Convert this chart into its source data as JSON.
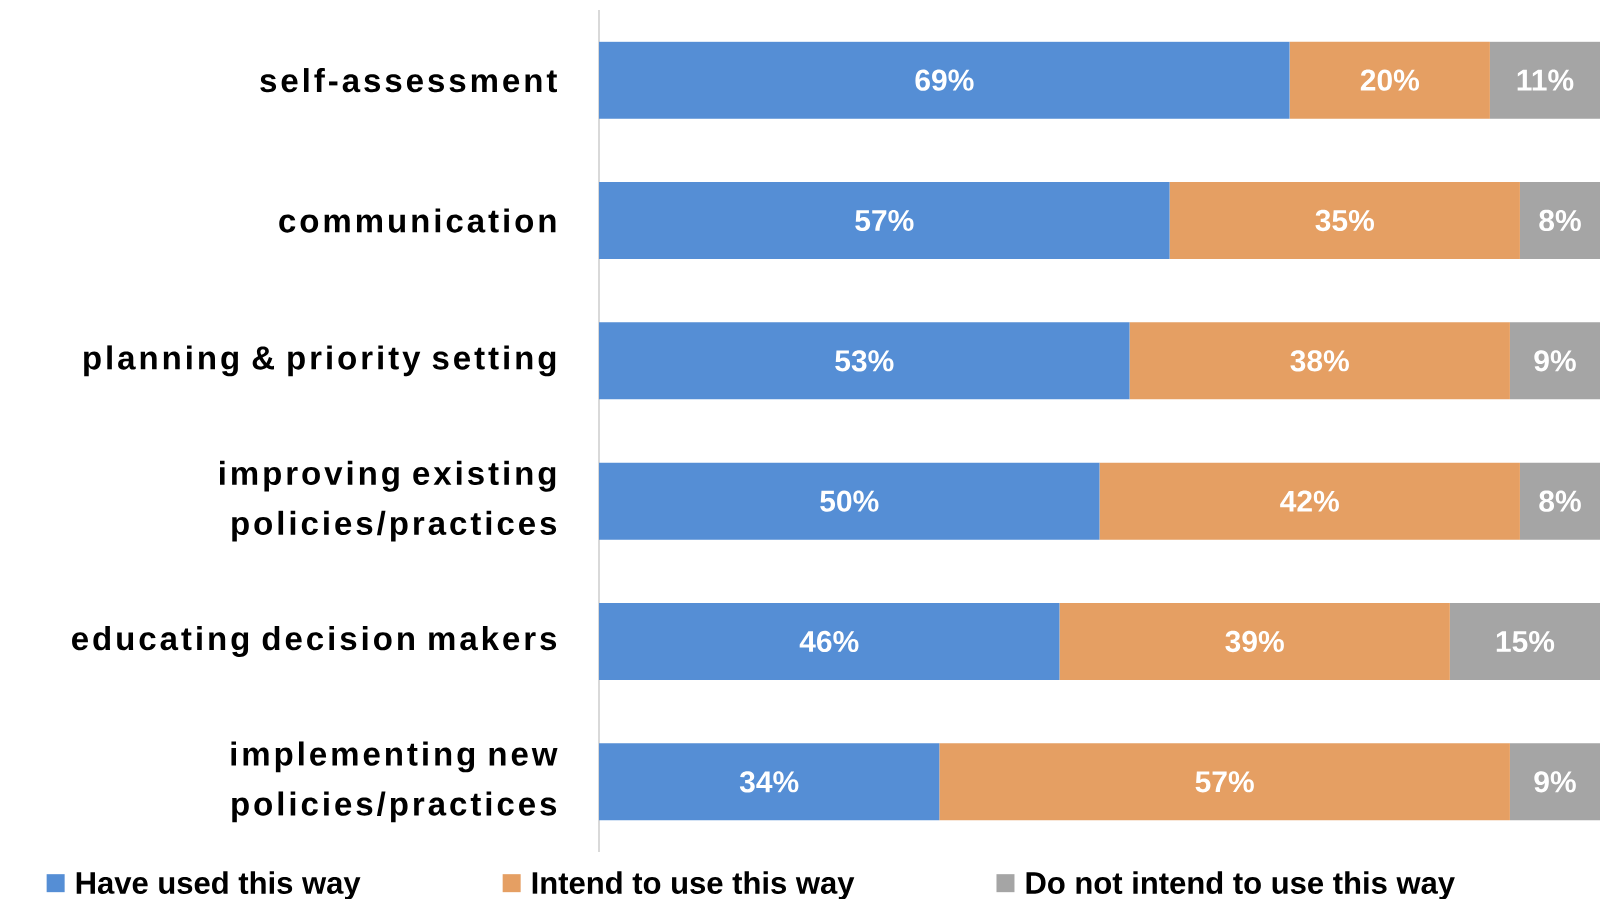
{
  "chart_data": {
    "type": "bar",
    "orientation": "horizontal",
    "stacked": true,
    "legend": "bottom",
    "categories": [
      "self-assessment",
      "communication",
      "planning & priority setting",
      "improving existing policies/practices",
      "educating decision makers",
      "implementing new policies/practices"
    ],
    "series": [
      {
        "name": "Have used this way",
        "color": "#558ed5",
        "values": [
          69,
          57,
          53,
          50,
          46,
          34
        ],
        "value_labels": [
          "69%",
          "57%",
          "53%",
          "50%",
          "46%",
          "34%"
        ]
      },
      {
        "name": "Intend to use this way",
        "color": "#e59f63",
        "values": [
          20,
          35,
          38,
          42,
          39,
          57
        ],
        "value_labels": [
          "20%",
          "35%",
          "38%",
          "42%",
          "39%",
          "57%"
        ]
      },
      {
        "name": "Do not intend to use this way",
        "color": "#a5a5a5",
        "values": [
          11,
          8,
          9,
          8,
          15,
          9
        ],
        "value_labels": [
          "11%",
          "8%",
          "9%",
          "8%",
          "15%",
          "9%"
        ]
      }
    ]
  }
}
